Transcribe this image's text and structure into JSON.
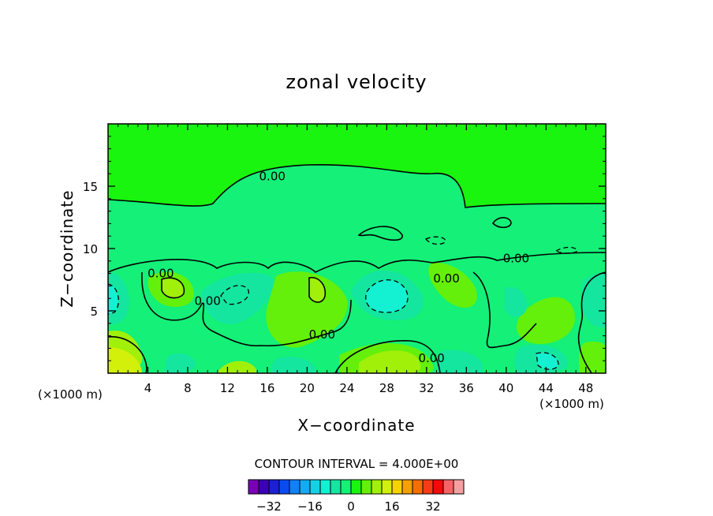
{
  "chart_data": {
    "type": "contour",
    "title": "zonal velocity",
    "xlabel": "X−coordinate",
    "ylabel": "Z−coordinate",
    "x_unit_left": "(×1000 m)",
    "x_unit_right": "(×1000 m)",
    "xlim": [
      0,
      50
    ],
    "ylim": [
      0,
      20
    ],
    "x_ticks": [
      4,
      8,
      12,
      16,
      20,
      24,
      28,
      32,
      36,
      40,
      44,
      48
    ],
    "y_ticks": [
      5,
      10,
      15
    ],
    "contour_labels": [
      {
        "text": "0.00",
        "x": 16.5,
        "y": 15.8
      },
      {
        "text": "0.00",
        "x": 41.0,
        "y": 9.2
      },
      {
        "text": "0.00",
        "x": 5.3,
        "y": 8.0
      },
      {
        "text": "0.00",
        "x": 10.0,
        "y": 5.8
      },
      {
        "text": "0.00",
        "x": 21.5,
        "y": 3.1
      },
      {
        "text": "0.00",
        "x": 34.0,
        "y": 7.6
      },
      {
        "text": "0.00",
        "x": 32.5,
        "y": 1.2
      }
    ],
    "contour_interval_text": "CONTOUR INTERVAL = 4.000E+00",
    "colorbar": {
      "tick_labels": [
        "−32",
        "−16",
        "0",
        "16",
        "32"
      ],
      "tick_values": [
        -32,
        -16,
        0,
        16,
        32
      ],
      "levels": [
        -36,
        -32,
        -28,
        -24,
        -20,
        -16,
        -12,
        -8,
        -4,
        0,
        4,
        8,
        12,
        16,
        20,
        24,
        28,
        32,
        36
      ],
      "colors": [
        "#7a00b8",
        "#3c00b4",
        "#1e1ed2",
        "#0a4bf0",
        "#0f82f5",
        "#14aaf5",
        "#14d2e6",
        "#14f0d2",
        "#14e6a0",
        "#14f078",
        "#19f50f",
        "#64f00a",
        "#a0f00a",
        "#d2f00a",
        "#f5d200",
        "#f5a000",
        "#f56e00",
        "#f53c14",
        "#f50a0a",
        "#f56464",
        "#f5a0a0"
      ]
    },
    "fields": {
      "background": "#19f50f",
      "lower_band": "#14f078",
      "neg_weak": "#14e6a0",
      "neg_mid": "#14f0d2",
      "pos_weak": "#64f00a",
      "pos_mid": "#a0f00a",
      "pos_strong": "#d2f00a"
    }
  }
}
